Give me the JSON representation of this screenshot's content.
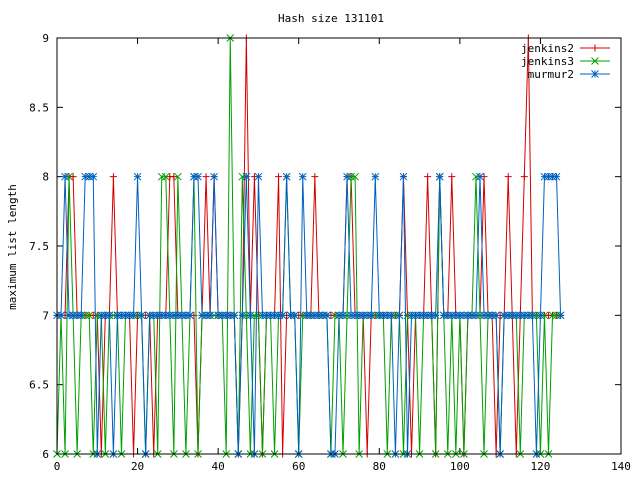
{
  "chart_data": {
    "type": "line",
    "title": "Hash size 131101",
    "xlabel": "",
    "ylabel": "maximum list length",
    "xlim": [
      0,
      140
    ],
    "ylim": [
      6,
      9
    ],
    "xticks": [
      0,
      20,
      40,
      60,
      80,
      100,
      120,
      140
    ],
    "yticks": [
      6,
      6.5,
      7,
      7.5,
      8,
      8.5,
      9
    ],
    "xtick_labels": [
      "0",
      "20",
      "40",
      "60",
      "80",
      "100",
      "120",
      "140"
    ],
    "ytick_labels": [
      "6",
      "6.5",
      "7",
      "7.5",
      "8",
      "8.5",
      "9"
    ],
    "legend_position": "top-right",
    "series": [
      {
        "name": "jenkins2",
        "color": "#d40000",
        "marker": "plus",
        "x": [
          0,
          1,
          2,
          3,
          4,
          5,
          6,
          7,
          8,
          9,
          10,
          11,
          12,
          13,
          14,
          15,
          16,
          17,
          18,
          19,
          20,
          21,
          22,
          23,
          24,
          25,
          26,
          27,
          28,
          29,
          30,
          31,
          32,
          33,
          34,
          35,
          36,
          37,
          38,
          39,
          40,
          41,
          42,
          43,
          44,
          45,
          46,
          47,
          48,
          49,
          50,
          51,
          52,
          53,
          54,
          55,
          56,
          57,
          58,
          59,
          60,
          61,
          62,
          63,
          64,
          65,
          66,
          67,
          68,
          69,
          70,
          71,
          72,
          73,
          74,
          75,
          76,
          77,
          78,
          79,
          80,
          81,
          82,
          83,
          84,
          85,
          86,
          87,
          88,
          89,
          90,
          91,
          92,
          93,
          94,
          95,
          96,
          97,
          98,
          99,
          100,
          101,
          102,
          103,
          104,
          105,
          106,
          107,
          108,
          109,
          110,
          111,
          112,
          113,
          114,
          115,
          116,
          117,
          118,
          119,
          120,
          121,
          122,
          123,
          124,
          125
        ],
        "values": [
          7,
          7,
          7,
          8,
          8,
          7,
          7,
          7,
          7,
          7,
          7,
          6,
          7,
          7,
          8,
          7,
          7,
          7,
          7,
          6,
          7,
          7,
          7,
          7,
          6,
          7,
          7,
          7,
          8,
          8,
          7,
          7,
          7,
          7,
          7,
          6,
          7,
          8,
          7,
          8,
          7,
          7,
          7,
          7,
          7,
          6,
          7,
          9,
          7,
          8,
          7,
          6,
          7,
          7,
          7,
          8,
          6,
          7,
          7,
          7,
          7,
          7,
          7,
          7,
          8,
          7,
          7,
          7,
          7,
          7,
          7,
          7,
          8,
          8,
          7,
          7,
          7,
          6,
          7,
          7,
          7,
          7,
          7,
          7,
          7,
          7,
          8,
          7,
          6,
          7,
          7,
          7,
          8,
          7,
          6,
          8,
          7,
          7,
          8,
          7,
          7,
          6,
          7,
          7,
          7,
          7,
          8,
          7,
          7,
          6,
          7,
          7,
          8,
          7,
          6,
          7,
          8,
          9,
          7,
          7,
          7,
          7,
          7,
          7,
          7,
          7
        ]
      },
      {
        "name": "jenkins3",
        "color": "#00a000",
        "marker": "cross",
        "x": [
          0,
          1,
          2,
          3,
          4,
          5,
          6,
          7,
          8,
          9,
          10,
          11,
          12,
          13,
          14,
          15,
          16,
          17,
          18,
          19,
          20,
          21,
          22,
          23,
          24,
          25,
          26,
          27,
          28,
          29,
          30,
          31,
          32,
          33,
          34,
          35,
          36,
          37,
          38,
          39,
          40,
          41,
          42,
          43,
          44,
          45,
          46,
          47,
          48,
          49,
          50,
          51,
          52,
          53,
          54,
          55,
          56,
          57,
          58,
          59,
          60,
          61,
          62,
          63,
          64,
          65,
          66,
          67,
          68,
          69,
          70,
          71,
          72,
          73,
          74,
          75,
          76,
          77,
          78,
          79,
          80,
          81,
          82,
          83,
          84,
          85,
          86,
          87,
          88,
          89,
          90,
          91,
          92,
          93,
          94,
          95,
          96,
          97,
          98,
          99,
          100,
          101,
          102,
          103,
          104,
          105,
          106,
          107,
          108,
          109,
          110,
          111,
          112,
          113,
          114,
          115,
          116,
          117,
          118,
          119,
          120,
          121,
          122,
          123,
          124,
          125
        ],
        "values": [
          6,
          7,
          6,
          8,
          7,
          6,
          7,
          7,
          7,
          6,
          7,
          7,
          6,
          7,
          7,
          7,
          6,
          7,
          7,
          7,
          7,
          7,
          6,
          7,
          7,
          6,
          8,
          8,
          7,
          6,
          8,
          7,
          6,
          7,
          8,
          6,
          7,
          7,
          7,
          7,
          7,
          7,
          6,
          9,
          7,
          6,
          8,
          7,
          6,
          7,
          7,
          6,
          7,
          7,
          6,
          7,
          7,
          8,
          7,
          7,
          6,
          7,
          7,
          7,
          7,
          7,
          7,
          7,
          6,
          7,
          7,
          6,
          7,
          8,
          8,
          6,
          7,
          7,
          7,
          7,
          7,
          7,
          6,
          7,
          7,
          7,
          6,
          7,
          7,
          7,
          6,
          7,
          7,
          7,
          6,
          8,
          7,
          6,
          7,
          6,
          7,
          6,
          7,
          7,
          8,
          7,
          6,
          7,
          7,
          7,
          6,
          7,
          7,
          7,
          7,
          6,
          7,
          7,
          7,
          7,
          6,
          7,
          6,
          7,
          7,
          7
        ]
      },
      {
        "name": "murmur2",
        "color": "#0060c0",
        "marker": "star",
        "x": [
          0,
          1,
          2,
          3,
          4,
          5,
          6,
          7,
          8,
          9,
          10,
          11,
          12,
          13,
          14,
          15,
          16,
          17,
          18,
          19,
          20,
          21,
          22,
          23,
          24,
          25,
          26,
          27,
          28,
          29,
          30,
          31,
          32,
          33,
          34,
          35,
          36,
          37,
          38,
          39,
          40,
          41,
          42,
          43,
          44,
          45,
          46,
          47,
          48,
          49,
          50,
          51,
          52,
          53,
          54,
          55,
          56,
          57,
          58,
          59,
          60,
          61,
          62,
          63,
          64,
          65,
          66,
          67,
          68,
          69,
          70,
          71,
          72,
          73,
          74,
          75,
          76,
          77,
          78,
          79,
          80,
          81,
          82,
          83,
          84,
          85,
          86,
          87,
          88,
          89,
          90,
          91,
          92,
          93,
          94,
          95,
          96,
          97,
          98,
          99,
          100,
          101,
          102,
          103,
          104,
          105,
          106,
          107,
          108,
          109,
          110,
          111,
          112,
          113,
          114,
          115,
          116,
          117,
          118,
          119,
          120,
          121,
          122,
          123,
          124,
          125
        ],
        "values": [
          7,
          7,
          8,
          7,
          7,
          7,
          7,
          8,
          8,
          8,
          6,
          7,
          7,
          7,
          6,
          7,
          7,
          7,
          7,
          7,
          8,
          7,
          6,
          7,
          7,
          7,
          7,
          7,
          7,
          7,
          7,
          7,
          7,
          7,
          8,
          8,
          7,
          7,
          7,
          8,
          7,
          7,
          7,
          7,
          7,
          6,
          7,
          8,
          7,
          6,
          8,
          7,
          7,
          7,
          7,
          7,
          7,
          8,
          7,
          7,
          6,
          8,
          7,
          7,
          7,
          7,
          7,
          7,
          6,
          6,
          7,
          7,
          8,
          7,
          7,
          7,
          7,
          7,
          7,
          8,
          7,
          7,
          7,
          7,
          6,
          7,
          8,
          6,
          7,
          7,
          7,
          7,
          7,
          7,
          7,
          8,
          7,
          7,
          7,
          7,
          7,
          7,
          7,
          7,
          7,
          8,
          7,
          7,
          7,
          7,
          6,
          7,
          7,
          7,
          7,
          7,
          7,
          7,
          7,
          6,
          7,
          8,
          8,
          8,
          8,
          7
        ]
      }
    ]
  }
}
